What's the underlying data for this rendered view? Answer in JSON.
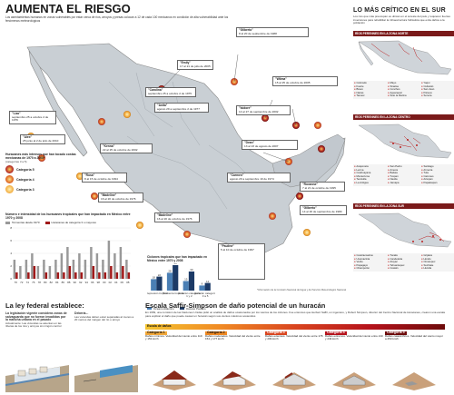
{
  "header": {
    "title": "AUMENTA EL RIESGO",
    "intro": "Los asentamientos humanos en zonas vulnerables por estar cerca de ríos, arroyos y presas colocan a 12 de cada 100 mexicanos en condición de alta vulnerabilidad ante los fenómenos meteorológicos"
  },
  "callouts": [
    {
      "name": "\"Emily\"",
      "text": "17 al 21 de julio de 2005"
    },
    {
      "name": "\"Dean\"",
      "text": "13 al 23 de agosto de 2007"
    },
    {
      "name": "\"Gilberto\"",
      "text": "8 al 20 de septiembre de 1988"
    },
    {
      "name": "\"Wilma\"",
      "text": "15 al 25 de octubre de 2005"
    },
    {
      "name": "\"Carolina\"",
      "text": "septiembre 25 a octubre 2 de 1975"
    },
    {
      "name": "\"Anita\"",
      "text": "agosto 29 a septiembre 2 de 1977"
    },
    {
      "name": "\"Kenna\"",
      "text": "22 al 25 de octubre de 2002"
    },
    {
      "name": "\"Isidore\"",
      "text": "14 al 27 de septiembre de 2002"
    },
    {
      "name": "\"Liza\"",
      "text": "septiembre 25 a octubre 2 de 1976"
    },
    {
      "name": "\"Alex\"",
      "text": "25 junio al 2 de julio de 2010"
    },
    {
      "name": "\"Rosa\"",
      "text": "8 al 15 de octubre de 1994"
    },
    {
      "name": "\"Pauline\"",
      "text": "5 al 10 de octubre de 1997"
    },
    {
      "name": "\"Madeline\"",
      "text": "16 al 20 de octubre de 1976"
    },
    {
      "name": "\"Carmen\"",
      "text": "agosto 29 a septiembre 10 de 1974"
    },
    {
      "name": "\"Roxanne\"",
      "text": "7 al 21 de octubre de 1995"
    },
    {
      "name": "\"Gilberto\"",
      "text": "14 al 26 de septiembre de 1980"
    },
    {
      "name": "\"Pauline\"",
      "text": "5 al 10 de octubre de 1997"
    }
  ],
  "legend": {
    "title": "Huracanes más intensos que han tocado costas mexicanas de 1970 a 2008*",
    "subtitle": "(categorías 3 a 5)",
    "items": [
      {
        "label": "Categoría 5",
        "color": "#8b1a1a"
      },
      {
        "label": "Categoría 4",
        "color": "#d9541f"
      },
      {
        "label": "Categoría 3",
        "color": "#f0a830"
      }
    ]
  },
  "bar_legend": {
    "title": "Número e intensidad de los huracanes tropicales que han impactado en México entre 1970 y 2008",
    "series": [
      {
        "name": "Tormentas desde 1970",
        "color": "#999999"
      },
      {
        "name": "Huracanes de categoría 3 o mayores",
        "color": "#a01818"
      }
    ]
  },
  "col_legend": {
    "title": "Ciclones tropicales que han impactado en México entre 1970 y 2008",
    "series": [
      {
        "name": "Océano Atlántico",
        "color": "#4a7fb5"
      },
      {
        "name": "Océano Pacífico",
        "color": "#1c3a66"
      }
    ]
  },
  "right": {
    "title": "LO MÁS CRÍTICO EN EL SUR",
    "intro": "Los ríos que más preocupan es ubican en el sureste del país y requieren fuertes inversiones para rehabilitar la infraestructura hidráulica que evita daños a la población",
    "zones": [
      {
        "head": "RÍOS PERENNES EN LA ZONA NORTE",
        "rivers": [
          "Colorado",
          "Mayo",
          "Yaqui",
          "Fuerte",
          "Sinaloa",
          "Culiacán",
          "Bravo",
          "Conchos",
          "San Juan",
          "Nazas",
          "Aguanaval",
          "Pánuco",
          "Tamesí",
          "Soto la Marina",
          "Sonora"
        ]
      },
      {
        "head": "RÍOS PERENNES EN LA ZONA CENTRO",
        "rivers": [
          "Acaponeta",
          "San Pedro",
          "Santiago",
          "Lerma",
          "Ameca",
          "Armería",
          "Coahuayana",
          "Balsas",
          "Tula",
          "Moctezuma",
          "Tuxpan",
          "Cazones",
          "Tecolutla",
          "Nautla",
          "Actopan",
          "La Antigua",
          "Jamapa",
          "Papaloapan"
        ]
      },
      {
        "head": "RÍOS PERENNES EN LA ZONA SUR",
        "rivers": [
          "Coatzacoalcos",
          "Tonalá",
          "Grijalva",
          "Usumacinta",
          "Candelaria",
          "Hondo",
          "Verde",
          "Atoyac",
          "Ometepec",
          "Papagayo",
          "Tehuantepec",
          "Suchiate",
          "Champotón",
          "Coatán",
          "Huixtla"
        ]
      }
    ]
  },
  "law": {
    "title": "La ley federal establece:",
    "p1_title": "La legislación vigente considera zonas de salvaguarda que no fueron invadidas por la mancha urbana en el pasado",
    "p1_text": "Actualmente: Las viviendas se asientan en las riberas de los ríos y arroyos sin ningún control",
    "p2_title": "Debería...",
    "p2_text": "Las viviendas deben estar separadas al menos a 20 metros del margen del río o arroyo"
  },
  "saffir": {
    "title": "Escala Saffir-Simpson de daño potencial de un huracán",
    "intro": "En 1969, una comisión de las Naciones Unidas pidió un análisis de daños ocasionados por los vientos de los ciclones. Fue entonces que Herbert Saffir, un ingeniero, y Robert Simpson, director del Centro Nacional de Huracanes, crearon una escala para explicar el daño que puede causar un huracán según sus vientos máximos sostenidos",
    "scale_label": "Escala de daños",
    "categories": [
      {
        "label": "Categoría 1",
        "text": "Daños mínimos. Velocidad del viento entre 119 y 153 km/h"
      },
      {
        "label": "Categoría 2",
        "text": "Daños moderados. Velocidad del viento entre 154 y 177 km/h"
      },
      {
        "label": "Categoría 3",
        "text": "Daños extensos. Velocidad del viento entre 178 y 209 km/h"
      },
      {
        "label": "Categoría 4",
        "text": "Daños extremos. Velocidad del viento entre 210 y 249 km/h"
      },
      {
        "label": "Categoría 5",
        "text": "Daños catastróficos. Velocidad del viento mayor a 250 km/h"
      }
    ]
  },
  "source_note": "*Información de la Comisión Nacional del Agua y del Servicio Meteorológico Nacional",
  "chart_data": [
    {
      "type": "bar",
      "title": "Número e intensidad de los huracanes tropicales que han impactado en México entre 1970 y 2008",
      "categories": [
        "70",
        "72",
        "74",
        "76",
        "78",
        "80",
        "82",
        "84",
        "86",
        "88",
        "90",
        "92",
        "94",
        "96",
        "98",
        "00",
        "02",
        "04",
        "06",
        "08"
      ],
      "series": [
        {
          "name": "Tormentas desde 1970",
          "values": [
            3,
            2,
            3,
            4,
            2,
            3,
            2,
            3,
            4,
            5,
            3,
            4,
            3,
            5,
            4,
            3,
            6,
            4,
            5,
            3
          ]
        },
        {
          "name": "Huracanes de categoría 3 o mayores",
          "values": [
            1,
            0,
            1,
            2,
            0,
            1,
            0,
            1,
            1,
            2,
            1,
            1,
            0,
            2,
            1,
            1,
            2,
            1,
            2,
            1
          ]
        }
      ],
      "ylim": [
        0,
        8
      ]
    },
    {
      "type": "bar",
      "title": "Ciclones tropicales que han impactado en México entre 1970 y 2008",
      "categories": [
        "Depresión tropical",
        "Tormenta tropical",
        "Huracán categoría 1 y 2",
        "Huracán categoría 3 a 5"
      ],
      "series": [
        {
          "name": "Océano Atlántico",
          "values": [
            18,
            28,
            15,
            8
          ]
        },
        {
          "name": "Océano Pacífico",
          "values": [
            22,
            40,
            30,
            12
          ]
        }
      ]
    }
  ]
}
